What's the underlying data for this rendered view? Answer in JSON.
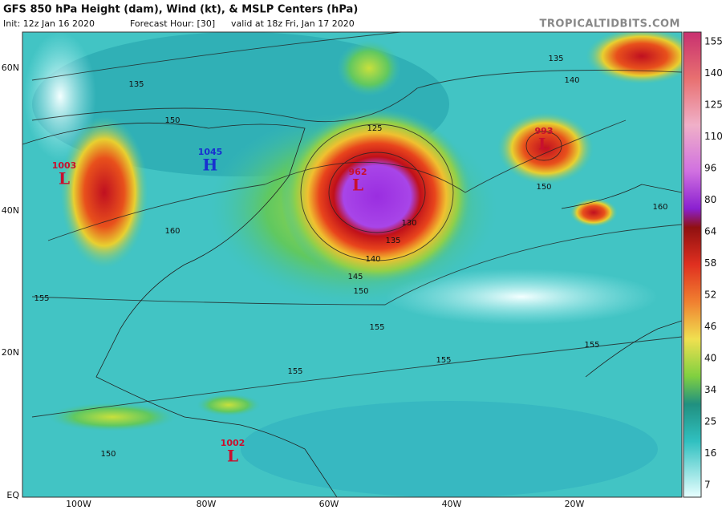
{
  "header": {
    "title": "GFS 850 hPa Height (dam), Wind (kt), & MSLP Centers (hPa)",
    "init": "Init: 12z Jan 16 2020",
    "forecast_hour": "Forecast Hour: [30]",
    "valid": "valid at 18z Fri, Jan 17 2020",
    "brand": "TROPICALTIDBITS.COM"
  },
  "axes": {
    "lat_labels": [
      "60N",
      "40N",
      "20N",
      "EQ"
    ],
    "lon_labels": [
      "100W",
      "80W",
      "60W",
      "40W",
      "20W"
    ]
  },
  "colorbar": {
    "ticks": [
      "155",
      "140",
      "125",
      "110",
      "96",
      "80",
      "64",
      "58",
      "52",
      "46",
      "40",
      "34",
      "25",
      "16",
      "7"
    ]
  },
  "pressure_centers": [
    {
      "pressure": "1003",
      "letter": "L"
    },
    {
      "pressure": "1045",
      "letter": "H"
    },
    {
      "pressure": "962",
      "letter": "L"
    },
    {
      "pressure": "993",
      "letter": "L"
    },
    {
      "pressure": "1002",
      "letter": "L"
    }
  ],
  "contour_labels": [
    "135",
    "150",
    "160",
    "125",
    "135",
    "140",
    "130",
    "145",
    "150",
    "155",
    "155",
    "155",
    "150",
    "155",
    "160",
    "155",
    "150",
    "140",
    "135"
  ]
}
